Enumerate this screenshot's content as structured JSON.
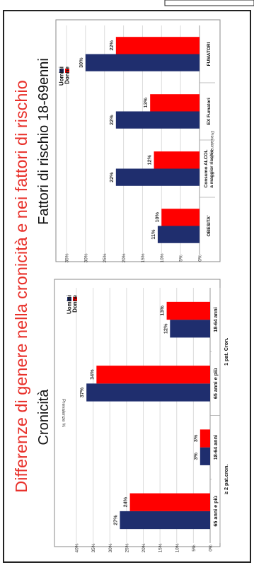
{
  "slide": {
    "main_title": "Differenze di genere nella cronicità e nei fattori di rischio",
    "colors": {
      "title_red": "#e8302a",
      "uomini": "#1f2e6e",
      "donne": "#ff0000",
      "border": "#222222"
    }
  },
  "chart_data": [
    {
      "type": "bar",
      "title": "Cronicità",
      "ylabel": "Prevalenze %",
      "ylim": [
        0,
        40
      ],
      "yticks": [
        "0%",
        "5%",
        "10%",
        "15%",
        "20%",
        "25%",
        "30%",
        "35%",
        "40%"
      ],
      "categories": [
        "18-64 anni",
        "65 anni e più",
        "18-64 anni",
        "65 anni e più"
      ],
      "groups": [
        "1 pat. Cron.",
        "≥ 2 pat.cron."
      ],
      "legend": "top-right",
      "series": [
        {
          "name": "Uomini",
          "values": [
            12,
            37,
            3,
            27
          ],
          "labels": [
            "12%",
            "37%",
            "3%",
            "27%"
          ]
        },
        {
          "name": "Donne",
          "values": [
            13,
            34,
            3,
            24
          ],
          "labels": [
            "13%",
            "34%",
            "3%",
            "24%"
          ]
        }
      ]
    },
    {
      "type": "bar",
      "title": "Fattori di rischio 18-69enni",
      "ylabel": "Prevalenze %",
      "ylim": [
        0,
        35
      ],
      "yticks": [
        "0%",
        "5%",
        "10%",
        "15%",
        "20%",
        "25%",
        "30%",
        "35%"
      ],
      "categories": [
        "FUMATORI",
        "EX Fumatori",
        "Consumo ALCOL a maggior rischio",
        "OBESITA'"
      ],
      "category_lines": [
        [
          "FUMATORI"
        ],
        [
          "EX Fumatori"
        ],
        [
          "Consumo ALCOL",
          "a maggior rischio"
        ],
        [
          "OBESITA'"
        ]
      ],
      "legend": "top-right",
      "series": [
        {
          "name": "Uomini",
          "values": [
            30,
            22,
            22,
            11
          ],
          "labels": [
            "30%",
            "22%",
            "22%",
            "11%"
          ]
        },
        {
          "name": "Donne",
          "values": [
            22,
            13,
            12,
            10
          ],
          "labels": [
            "22%",
            "13%",
            "12%",
            "10%"
          ]
        }
      ]
    }
  ]
}
